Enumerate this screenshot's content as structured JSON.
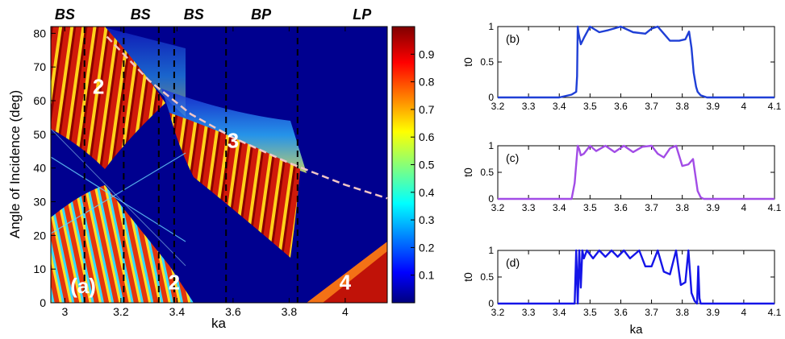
{
  "chart_data": [
    {
      "type": "heatmap",
      "panel_label": "(a)",
      "xlabel": "ka",
      "ylabel": "Angle of Incidence (deg)",
      "xlim": [
        2.95,
        4.15
      ],
      "ylim": [
        0,
        82
      ],
      "x_ticks": [
        3,
        3.2,
        3.4,
        3.6,
        3.8,
        4
      ],
      "x_tick_labels": [
        "3",
        "3.2",
        "3.4",
        "3.6",
        "3.8",
        "4"
      ],
      "y_ticks": [
        0,
        10,
        20,
        30,
        40,
        50,
        60,
        70,
        80
      ],
      "y_tick_labels": [
        "0",
        "10",
        "20",
        "30",
        "40",
        "50",
        "60",
        "70",
        "80"
      ],
      "colorbar": {
        "range": [
          0,
          1
        ],
        "ticks": [
          0.1,
          0.2,
          0.3,
          0.4,
          0.5,
          0.6,
          0.7,
          0.8,
          0.9
        ],
        "tick_labels": [
          "0.1",
          "0.2",
          "0.3",
          "0.4",
          "0.5",
          "0.6",
          "0.7",
          "0.8",
          "0.9"
        ],
        "colormap": "jet"
      },
      "band_labels": [
        {
          "text": "BS",
          "x": 3.0
        },
        {
          "text": "BS",
          "x": 3.27
        },
        {
          "text": "BS",
          "x": 3.46
        },
        {
          "text": "BP",
          "x": 3.7
        },
        {
          "text": "LP",
          "x": 4.06
        }
      ],
      "dashed_vertical_lines_x": [
        3.07,
        3.21,
        3.335,
        3.39,
        3.575,
        3.83
      ],
      "cutoff_curve": {
        "color": "#f2c6c6",
        "x": [
          3.15,
          3.3,
          3.45,
          3.6,
          3.8,
          4.0,
          4.15
        ],
        "y": [
          79,
          66,
          56,
          49,
          41.5,
          35,
          31
        ]
      },
      "region_labels": [
        {
          "text": "2",
          "x": 3.12,
          "y": 62
        },
        {
          "text": "3",
          "x": 3.6,
          "y": 46
        },
        {
          "text": "2",
          "x": 3.39,
          "y": 4
        },
        {
          "text": "4",
          "x": 4.0,
          "y": 4
        }
      ]
    },
    {
      "type": "line",
      "panel_label": "(b)",
      "xlabel": "",
      "ylabel": "t0",
      "xlim": [
        3.2,
        4.1
      ],
      "ylim": [
        0,
        1
      ],
      "x_ticks": [
        "3.2",
        "3.3",
        "3.4",
        "3.5",
        "3.6",
        "3.7",
        "3.8",
        "3.9",
        "4",
        "4.1"
      ],
      "y_ticks": [
        "0",
        "0.5",
        "1"
      ],
      "color": "#1f3fd6",
      "x": [
        3.2,
        3.4,
        3.44,
        3.455,
        3.458,
        3.46,
        3.463,
        3.47,
        3.48,
        3.5,
        3.53,
        3.56,
        3.6,
        3.64,
        3.68,
        3.7,
        3.72,
        3.74,
        3.76,
        3.79,
        3.81,
        3.822,
        3.83,
        3.837,
        3.845,
        3.85,
        3.86,
        3.88,
        3.9,
        4.1
      ],
      "y": [
        0,
        0,
        0.04,
        0.08,
        0.3,
        1.0,
        0.9,
        0.75,
        0.84,
        1.0,
        0.92,
        0.95,
        1.0,
        0.92,
        0.9,
        0.97,
        1.0,
        0.9,
        0.8,
        0.8,
        0.82,
        0.93,
        0.7,
        0.35,
        0.15,
        0.08,
        0.03,
        0,
        0,
        0
      ]
    },
    {
      "type": "line",
      "panel_label": "(c)",
      "xlabel": "",
      "ylabel": "t0",
      "xlim": [
        3.2,
        4.1
      ],
      "ylim": [
        0,
        1
      ],
      "x_ticks": [
        "3.2",
        "3.3",
        "3.4",
        "3.5",
        "3.6",
        "3.7",
        "3.8",
        "3.9",
        "4",
        "4.1"
      ],
      "y_ticks": [
        "0",
        "0.5",
        "1"
      ],
      "color": "#a24ce6",
      "x": [
        3.2,
        3.44,
        3.45,
        3.46,
        3.465,
        3.47,
        3.48,
        3.5,
        3.52,
        3.55,
        3.58,
        3.61,
        3.64,
        3.67,
        3.7,
        3.72,
        3.74,
        3.76,
        3.78,
        3.8,
        3.82,
        3.835,
        3.84,
        3.85,
        3.86,
        3.87,
        4.1
      ],
      "y": [
        0,
        0,
        0.3,
        1.0,
        0.93,
        0.82,
        0.85,
        1.0,
        0.9,
        1.0,
        0.88,
        1.0,
        0.88,
        0.98,
        1.0,
        0.85,
        0.78,
        0.95,
        1.0,
        0.62,
        0.65,
        0.75,
        0.55,
        0.15,
        0.03,
        0,
        0
      ]
    },
    {
      "type": "line",
      "panel_label": "(d)",
      "xlabel": "ka",
      "ylabel": "t0",
      "xlim": [
        3.2,
        4.1
      ],
      "ylim": [
        0,
        1
      ],
      "x_ticks": [
        "3.2",
        "3.3",
        "3.4",
        "3.5",
        "3.6",
        "3.7",
        "3.8",
        "3.9",
        "4",
        "4.1"
      ],
      "y_ticks": [
        "0",
        "0.5",
        "1"
      ],
      "color": "#1515e8",
      "x": [
        3.2,
        3.45,
        3.455,
        3.46,
        3.465,
        3.47,
        3.475,
        3.48,
        3.49,
        3.51,
        3.53,
        3.55,
        3.57,
        3.59,
        3.61,
        3.63,
        3.66,
        3.68,
        3.7,
        3.72,
        3.74,
        3.76,
        3.78,
        3.795,
        3.81,
        3.82,
        3.83,
        3.84,
        3.848,
        3.852,
        3.856,
        3.86,
        4.1
      ],
      "y": [
        0,
        0,
        1.0,
        0.0,
        1.0,
        0.3,
        1.0,
        0.85,
        1.0,
        0.85,
        1.0,
        0.88,
        1.0,
        0.88,
        1.0,
        0.85,
        1.0,
        0.7,
        0.7,
        1.0,
        0.6,
        0.55,
        1.0,
        0.35,
        0.4,
        1.0,
        0.2,
        0.05,
        0.0,
        0.7,
        0.1,
        0,
        0
      ]
    }
  ]
}
